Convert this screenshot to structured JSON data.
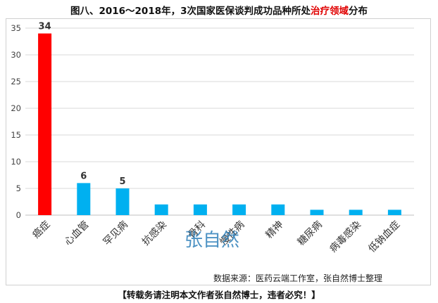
{
  "title": {
    "prefix": "图八、2016～2018年，3次国家医保谈判成功品种所处",
    "highlight": "治疗领域",
    "suffix": "分布"
  },
  "watermark": "张自然",
  "source": "数据来源：医药云端工作室，张自然博士整理",
  "notice": "【转载务请注明本文作者张自然博士，违者必究！】",
  "colors": {
    "highlight": "#ff0000",
    "bar": "#00b0f0",
    "grid": "#d9d9d9",
    "axis": "#444444"
  },
  "chart_data": {
    "type": "bar",
    "categories": [
      "癌症",
      "心血管",
      "罕见病",
      "抗感染",
      "骨科",
      "慢性病",
      "精神",
      "糖尿病",
      "病毒感染",
      "低钠血症"
    ],
    "values": [
      34,
      6,
      5,
      2,
      2,
      2,
      2,
      1,
      1,
      1
    ],
    "data_labels": [
      "34",
      "6",
      "5",
      "",
      "",
      "",
      "",
      "",
      "",
      ""
    ],
    "highlight_index": 0,
    "ylim": [
      0,
      35
    ],
    "yticks": [
      0,
      5,
      10,
      15,
      20,
      25,
      30,
      35
    ],
    "grid": true,
    "legend": "none",
    "xlabel": "",
    "ylabel": ""
  }
}
